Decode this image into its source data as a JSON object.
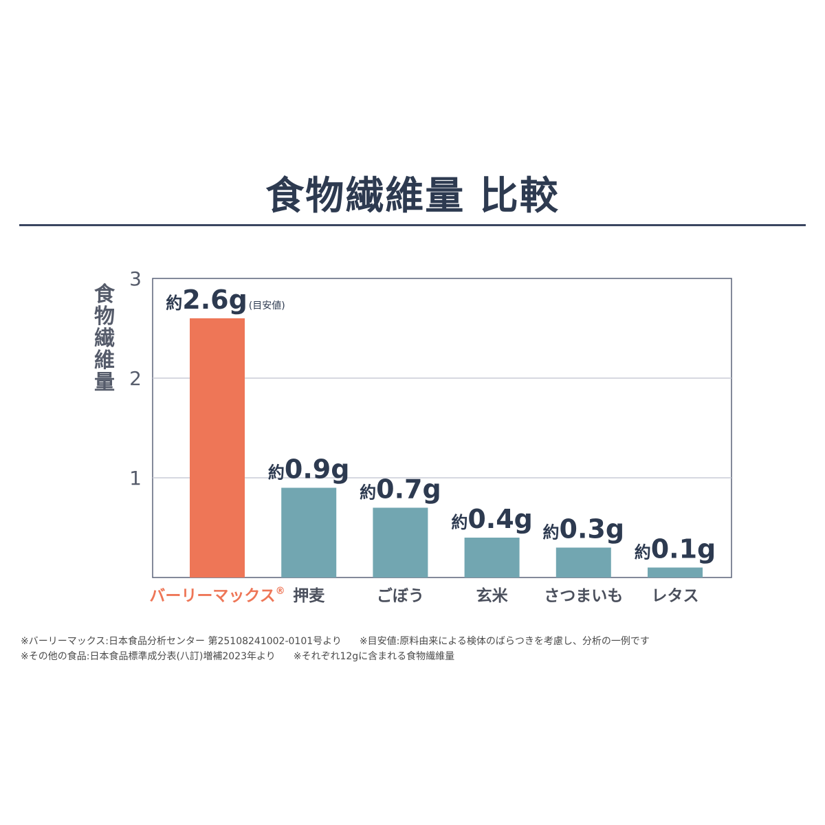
{
  "title": "食物繊維量 比較",
  "chart_data": {
    "type": "bar",
    "ylabel": "食物繊維量",
    "ylim": [
      0,
      3
    ],
    "yticks": [
      "1",
      "2",
      "3"
    ],
    "grid": true,
    "categories": [
      "バーリーマックス",
      "押麦",
      "ごぼう",
      "玄米",
      "さつまいも",
      "レタス"
    ],
    "registered_mark": "®",
    "values": [
      2.6,
      0.9,
      0.7,
      0.4,
      0.3,
      0.1
    ],
    "label_prefix": "約",
    "value_labels": [
      "2.6g",
      "0.9g",
      "0.7g",
      "0.4g",
      "0.3g",
      "0.1g"
    ],
    "first_label_suffix": "(目安値)",
    "colors": {
      "highlight": "#ee7657",
      "default": "#72a6b1",
      "axis": "#5a6278",
      "grid": "#c9ccd6"
    }
  },
  "notes": {
    "line1": [
      "※バーリーマックス:日本食品分析センター 第25108241002-0101号より",
      "※目安値:原料由来による検体のばらつきを考慮し、分析の一例です"
    ],
    "line2": [
      "※その他の食品:日本食品標準成分表(八訂)増補2023年より",
      "※それぞれ12gに含まれる食物繊維量"
    ]
  }
}
